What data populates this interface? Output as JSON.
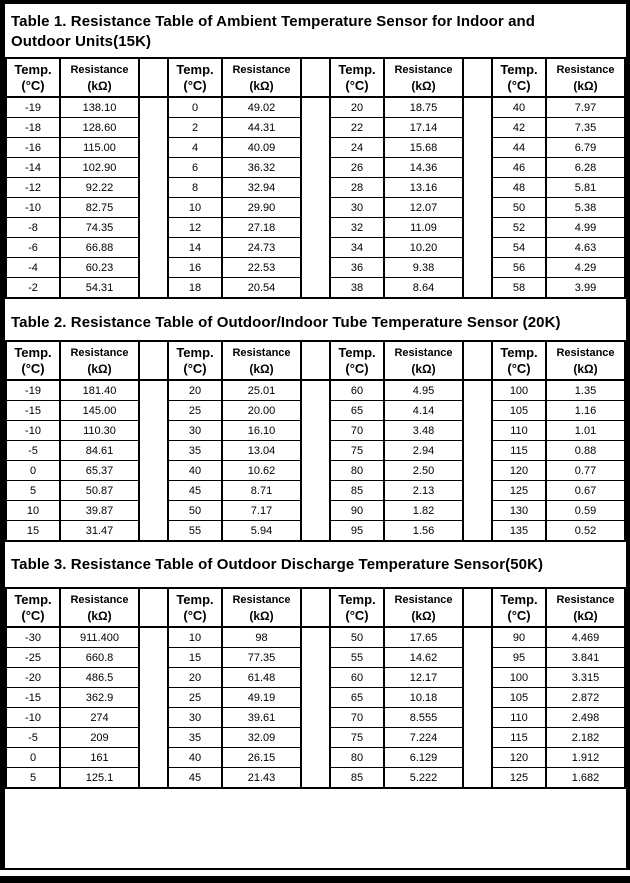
{
  "document": {
    "header_labels": {
      "temp": "Temp.",
      "temp_unit": "(°C)",
      "resistance": "Resistance",
      "resistance_unit": "(kΩ)"
    },
    "tables": [
      {
        "title": "Table 1. Resistance Table of Ambient Temperature Sensor for Indoor and Outdoor Units(15K)",
        "groups": [
          [
            [
              "-19",
              "138.10"
            ],
            [
              "-18",
              "128.60"
            ],
            [
              "-16",
              "115.00"
            ],
            [
              "-14",
              "102.90"
            ],
            [
              "-12",
              "92.22"
            ],
            [
              "-10",
              "82.75"
            ],
            [
              "-8",
              "74.35"
            ],
            [
              "-6",
              "66.88"
            ],
            [
              "-4",
              "60.23"
            ],
            [
              "-2",
              "54.31"
            ]
          ],
          [
            [
              "0",
              "49.02"
            ],
            [
              "2",
              "44.31"
            ],
            [
              "4",
              "40.09"
            ],
            [
              "6",
              "36.32"
            ],
            [
              "8",
              "32.94"
            ],
            [
              "10",
              "29.90"
            ],
            [
              "12",
              "27.18"
            ],
            [
              "14",
              "24.73"
            ],
            [
              "16",
              "22.53"
            ],
            [
              "18",
              "20.54"
            ]
          ],
          [
            [
              "20",
              "18.75"
            ],
            [
              "22",
              "17.14"
            ],
            [
              "24",
              "15.68"
            ],
            [
              "26",
              "14.36"
            ],
            [
              "28",
              "13.16"
            ],
            [
              "30",
              "12.07"
            ],
            [
              "32",
              "11.09"
            ],
            [
              "34",
              "10.20"
            ],
            [
              "36",
              "9.38"
            ],
            [
              "38",
              "8.64"
            ]
          ],
          [
            [
              "40",
              "7.97"
            ],
            [
              "42",
              "7.35"
            ],
            [
              "44",
              "6.79"
            ],
            [
              "46",
              "6.28"
            ],
            [
              "48",
              "5.81"
            ],
            [
              "50",
              "5.38"
            ],
            [
              "52",
              "4.99"
            ],
            [
              "54",
              "4.63"
            ],
            [
              "56",
              "4.29"
            ],
            [
              "58",
              "3.99"
            ]
          ]
        ]
      },
      {
        "title": "Table 2. Resistance Table of Outdoor/Indoor Tube Temperature Sensor (20K)",
        "groups": [
          [
            [
              "-19",
              "181.40"
            ],
            [
              "-15",
              "145.00"
            ],
            [
              "-10",
              "110.30"
            ],
            [
              "-5",
              "84.61"
            ],
            [
              "0",
              "65.37"
            ],
            [
              "5",
              "50.87"
            ],
            [
              "10",
              "39.87"
            ],
            [
              "15",
              "31.47"
            ]
          ],
          [
            [
              "20",
              "25.01"
            ],
            [
              "25",
              "20.00"
            ],
            [
              "30",
              "16.10"
            ],
            [
              "35",
              "13.04"
            ],
            [
              "40",
              "10.62"
            ],
            [
              "45",
              "8.71"
            ],
            [
              "50",
              "7.17"
            ],
            [
              "55",
              "5.94"
            ]
          ],
          [
            [
              "60",
              "4.95"
            ],
            [
              "65",
              "4.14"
            ],
            [
              "70",
              "3.48"
            ],
            [
              "75",
              "2.94"
            ],
            [
              "80",
              "2.50"
            ],
            [
              "85",
              "2.13"
            ],
            [
              "90",
              "1.82"
            ],
            [
              "95",
              "1.56"
            ]
          ],
          [
            [
              "100",
              "1.35"
            ],
            [
              "105",
              "1.16"
            ],
            [
              "110",
              "1.01"
            ],
            [
              "115",
              "0.88"
            ],
            [
              "120",
              "0.77"
            ],
            [
              "125",
              "0.67"
            ],
            [
              "130",
              "0.59"
            ],
            [
              "135",
              "0.52"
            ]
          ]
        ]
      },
      {
        "title": "Table 3. Resistance Table of Outdoor Discharge Temperature Sensor(50K)",
        "groups": [
          [
            [
              "-30",
              "911.400"
            ],
            [
              "-25",
              "660.8"
            ],
            [
              "-20",
              "486.5"
            ],
            [
              "-15",
              "362.9"
            ],
            [
              "-10",
              "274"
            ],
            [
              "-5",
              "209"
            ],
            [
              "0",
              "161"
            ],
            [
              "5",
              "125.1"
            ]
          ],
          [
            [
              "10",
              "98"
            ],
            [
              "15",
              "77.35"
            ],
            [
              "20",
              "61.48"
            ],
            [
              "25",
              "49.19"
            ],
            [
              "30",
              "39.61"
            ],
            [
              "35",
              "32.09"
            ],
            [
              "40",
              "26.15"
            ],
            [
              "45",
              "21.43"
            ]
          ],
          [
            [
              "50",
              "17.65"
            ],
            [
              "55",
              "14.62"
            ],
            [
              "60",
              "12.17"
            ],
            [
              "65",
              "10.18"
            ],
            [
              "70",
              "8.555"
            ],
            [
              "75",
              "7.224"
            ],
            [
              "80",
              "6.129"
            ],
            [
              "85",
              "5.222"
            ]
          ],
          [
            [
              "90",
              "4.469"
            ],
            [
              "95",
              "3.841"
            ],
            [
              "100",
              "3.315"
            ],
            [
              "105",
              "2.872"
            ],
            [
              "110",
              "2.498"
            ],
            [
              "115",
              "2.182"
            ],
            [
              "120",
              "1.912"
            ],
            [
              "125",
              "1.682"
            ]
          ]
        ]
      }
    ]
  }
}
